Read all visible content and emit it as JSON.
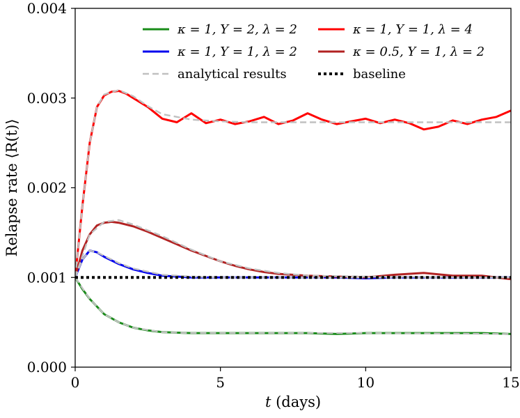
{
  "chart_data": {
    "type": "line",
    "title": "",
    "xlabel": "t (days)",
    "ylabel": "Relapse rate ⟨R(t)⟩",
    "xlim": [
      0,
      15
    ],
    "ylim": [
      0,
      0.004
    ],
    "x_ticks": [
      "0",
      "5",
      "10",
      "15"
    ],
    "y_ticks": [
      "0.000",
      "0.001",
      "0.002",
      "0.003",
      "0.004"
    ],
    "grid": false,
    "legend_position": "top-right",
    "legend": [
      {
        "label": "κ = 1, Y = 2, λ = 2",
        "color": "#1a8c1a",
        "style": "solid"
      },
      {
        "label": "κ = 1, Y = 1, λ = 4",
        "color": "#ff0000",
        "style": "solid"
      },
      {
        "label": "κ = 1, Y = 1, λ = 2",
        "color": "#0000ee",
        "style": "solid"
      },
      {
        "label": "κ = 0.5, Y = 1, λ = 2",
        "color": "#b22222",
        "style": "solid"
      },
      {
        "label": "analytical results",
        "color": "#c0c0c0",
        "style": "dashed"
      },
      {
        "label": "baseline",
        "color": "#000000",
        "style": "dotted"
      }
    ],
    "series": [
      {
        "name": "κ = 1, Y = 2, λ = 2",
        "color": "#1a8c1a",
        "x": [
          0,
          0.25,
          0.5,
          1,
          1.5,
          2,
          2.5,
          3,
          4,
          5,
          6,
          7,
          8,
          9,
          10,
          11,
          12,
          13,
          14,
          15
        ],
        "y": [
          0.001,
          0.00087,
          0.00076,
          0.00059,
          0.0005,
          0.00044,
          0.00041,
          0.00039,
          0.00038,
          0.00038,
          0.00038,
          0.00038,
          0.00038,
          0.00037,
          0.00038,
          0.00038,
          0.00038,
          0.00038,
          0.00038,
          0.00037
        ]
      },
      {
        "name": "κ = 1, Y = 1, λ = 4",
        "color": "#ff0000",
        "x": [
          0,
          0.25,
          0.5,
          0.75,
          1,
          1.25,
          1.5,
          1.75,
          2,
          2.5,
          3,
          3.5,
          4,
          4.5,
          5,
          5.5,
          6,
          6.5,
          7,
          7.5,
          8,
          8.5,
          9,
          9.5,
          10,
          10.5,
          11,
          11.5,
          12,
          12.5,
          13,
          13.5,
          14,
          14.5,
          15
        ],
        "y": [
          0.001,
          0.0018,
          0.0025,
          0.0029,
          0.00303,
          0.00307,
          0.00308,
          0.00305,
          0.003,
          0.0029,
          0.00277,
          0.00273,
          0.00283,
          0.00272,
          0.00276,
          0.00271,
          0.00274,
          0.00279,
          0.00271,
          0.00275,
          0.00283,
          0.00276,
          0.00271,
          0.00274,
          0.00277,
          0.00272,
          0.00276,
          0.00272,
          0.00265,
          0.00268,
          0.00275,
          0.00271,
          0.00276,
          0.00279,
          0.00286
        ]
      },
      {
        "name": "κ = 1, Y = 1, λ = 2",
        "color": "#0000ee",
        "x": [
          0,
          0.25,
          0.5,
          0.75,
          1,
          1.5,
          2,
          2.5,
          3,
          3.5,
          4,
          5,
          6,
          7,
          8,
          9,
          10,
          11,
          12,
          13,
          14,
          15
        ],
        "y": [
          0.001,
          0.0012,
          0.0013,
          0.00128,
          0.00123,
          0.00115,
          0.00109,
          0.00105,
          0.00102,
          0.00101,
          0.001,
          0.001,
          0.001,
          0.001,
          0.001,
          0.001,
          0.00099,
          0.001,
          0.001,
          0.001,
          0.001,
          0.001
        ]
      },
      {
        "name": "κ = 0.5, Y = 1, λ = 2",
        "color": "#b22222",
        "x": [
          0,
          0.25,
          0.5,
          0.75,
          1,
          1.25,
          1.5,
          2,
          2.5,
          3,
          3.5,
          4,
          4.5,
          5,
          5.5,
          6,
          6.5,
          7,
          8,
          9,
          10,
          11,
          12,
          13,
          14,
          15
        ],
        "y": [
          0.001,
          0.0013,
          0.00148,
          0.00158,
          0.00161,
          0.00162,
          0.00161,
          0.00157,
          0.00151,
          0.00144,
          0.00137,
          0.0013,
          0.00124,
          0.00118,
          0.00113,
          0.00109,
          0.00106,
          0.00104,
          0.00102,
          0.00101,
          0.001,
          0.00103,
          0.00105,
          0.00102,
          0.00102,
          0.00098
        ]
      },
      {
        "name": "analytical results",
        "color": "#c0c0c0",
        "dashed": true,
        "note_series": "fit curves",
        "curves": [
          {
            "x": [
              0,
              0.5,
              1,
              1.5,
              2,
              3,
              4,
              5,
              7,
              10,
              15
            ],
            "y": [
              0.001,
              0.00076,
              0.00059,
              0.0005,
              0.00044,
              0.00039,
              0.00038,
              0.00038,
              0.00038,
              0.00038,
              0.00037
            ]
          },
          {
            "x": [
              0,
              0.25,
              0.5,
              0.75,
              1,
              1.5,
              2,
              2.5,
              3,
              4,
              5,
              6,
              8,
              10,
              12,
              15
            ],
            "y": [
              0.001,
              0.0018,
              0.0025,
              0.0029,
              0.00304,
              0.00309,
              0.00302,
              0.00291,
              0.00282,
              0.00276,
              0.00274,
              0.00273,
              0.00273,
              0.00273,
              0.00273,
              0.00273
            ]
          },
          {
            "x": [
              0,
              0.25,
              0.5,
              0.75,
              1,
              1.5,
              2,
              3,
              4,
              5,
              15
            ],
            "y": [
              0.001,
              0.0012,
              0.0013,
              0.00128,
              0.00124,
              0.00116,
              0.0011,
              0.00103,
              0.00101,
              0.001,
              0.001
            ]
          },
          {
            "x": [
              0,
              0.5,
              1,
              1.5,
              2,
              3,
              4,
              5,
              6,
              7,
              8,
              10,
              15
            ],
            "y": [
              0.001,
              0.00148,
              0.00162,
              0.00164,
              0.00159,
              0.00146,
              0.00131,
              0.00118,
              0.0011,
              0.00105,
              0.00102,
              0.00101,
              0.001
            ]
          }
        ]
      },
      {
        "name": "baseline",
        "color": "#000000",
        "dotted": true,
        "x": [
          0,
          15
        ],
        "y": [
          0.001,
          0.001
        ]
      }
    ]
  }
}
